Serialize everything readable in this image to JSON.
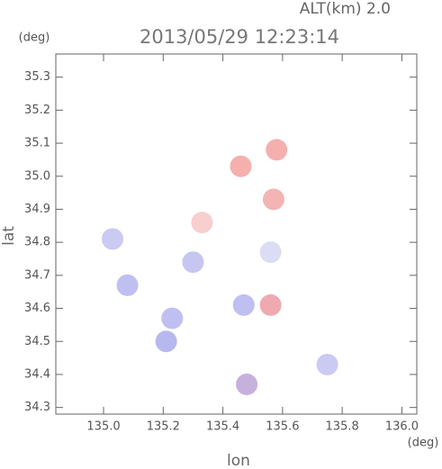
{
  "chart_data": {
    "type": "scatter",
    "title": "2013/05/29 12:23:14",
    "subtitle": "ALT(km) 2.0",
    "y_unit": "(deg)",
    "x_unit": "(deg)",
    "y_label": "lat",
    "x_label": "lon",
    "xlim": [
      134.84,
      136.05
    ],
    "ylim": [
      34.28,
      35.37
    ],
    "xticks": [
      {
        "value": 135.0,
        "label": "135.0"
      },
      135.2,
      135.4,
      135.6,
      135.8,
      {
        "value": 136.0,
        "label": "136.0"
      }
    ],
    "yticks": [
      34.3,
      34.4,
      34.5,
      34.6,
      34.7,
      34.8,
      34.9,
      {
        "value": 35.0,
        "label": "35.0"
      },
      35.1,
      35.2,
      35.3
    ],
    "x": [
      135.46,
      135.57,
      135.58,
      135.33,
      135.03,
      135.08,
      135.3,
      135.23,
      135.21,
      135.47,
      135.56,
      135.48,
      135.75,
      135.56
    ],
    "y": [
      35.03,
      34.93,
      35.08,
      34.86,
      34.81,
      34.67,
      34.74,
      34.57,
      34.5,
      34.61,
      34.61,
      34.37,
      34.43,
      34.77
    ],
    "colors": [
      "#f4a6a6",
      "#f3acac",
      "#f4a6a6",
      "#f6caca",
      "#c4c4f2",
      "#b8b8f0",
      "#c0c0f0",
      "#b8b8f0",
      "#b0b0ee",
      "#b8b8f0",
      "#f0a0a8",
      "#c0a8d8",
      "#c4c4f2",
      "#d8d8f4"
    ]
  }
}
